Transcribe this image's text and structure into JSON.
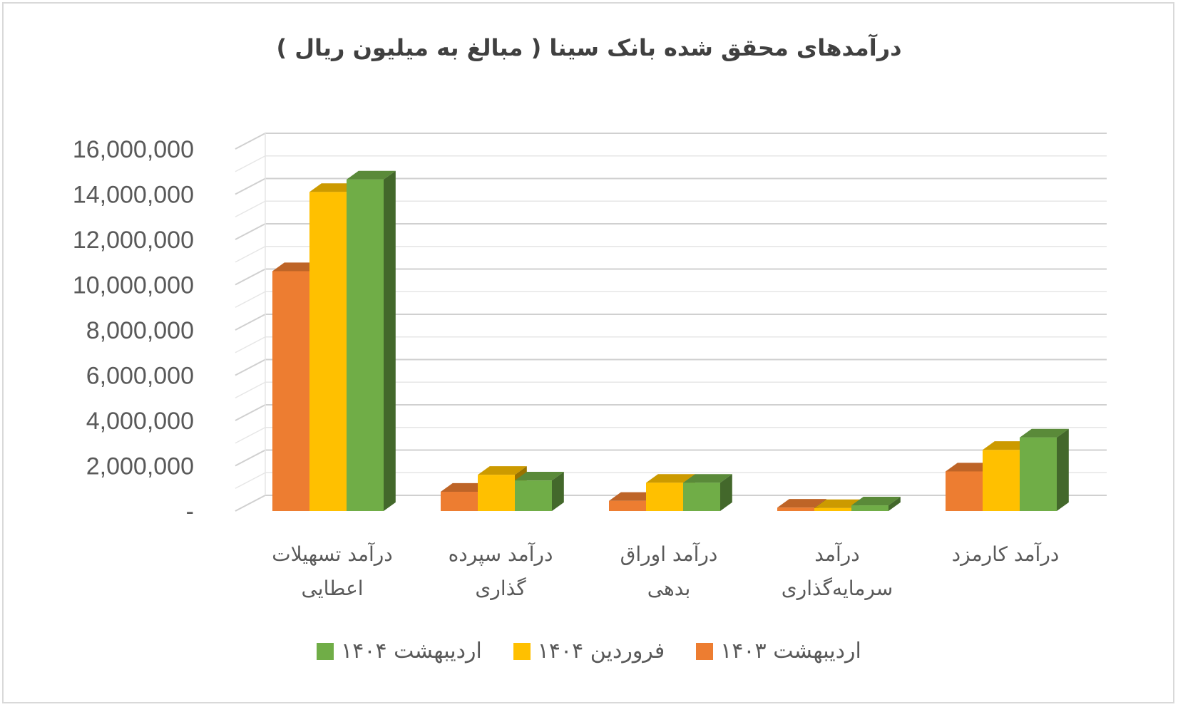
{
  "chart_data": {
    "type": "bar",
    "title": "درآمدهای محقق شده بانک سینا ( مبالغ به میلیون ریال )",
    "categories": [
      [
        "درآمد تسهیلات",
        "اعطایی"
      ],
      [
        "درآمد سپرده",
        "گذاری"
      ],
      [
        "درآمد اوراق",
        "بدهی"
      ],
      [
        "درآمد",
        "سرمایه‌گذاری"
      ],
      [
        "درآمد کارمزد"
      ]
    ],
    "series": [
      {
        "name": "اردیبهشت ۱۴۰۳",
        "color": "#ED7D31",
        "values": [
          10600000,
          850000,
          450000,
          150000,
          1750000
        ]
      },
      {
        "name": "فروردین ۱۴۰۴",
        "color": "#FFC000",
        "values": [
          14100000,
          1600000,
          1250000,
          130000,
          2700000
        ]
      },
      {
        "name": "اردیبهشت ۱۴۰۴",
        "color": "#70AD47",
        "values": [
          14650000,
          1350000,
          1250000,
          250000,
          3250000
        ]
      }
    ],
    "ylim": [
      0,
      16000000
    ],
    "yticks": [
      {
        "value": 0,
        "label": "-"
      },
      {
        "value": 2000000,
        "label": "2,000,000"
      },
      {
        "value": 4000000,
        "label": "4,000,000"
      },
      {
        "value": 6000000,
        "label": "6,000,000"
      },
      {
        "value": 8000000,
        "label": "8,000,000"
      },
      {
        "value": 10000000,
        "label": "10,000,000"
      },
      {
        "value": 12000000,
        "label": "12,000,000"
      },
      {
        "value": 14000000,
        "label": "14,000,000"
      },
      {
        "value": 16000000,
        "label": "16,000,000"
      }
    ],
    "grid": true,
    "legend_position": "bottom"
  }
}
